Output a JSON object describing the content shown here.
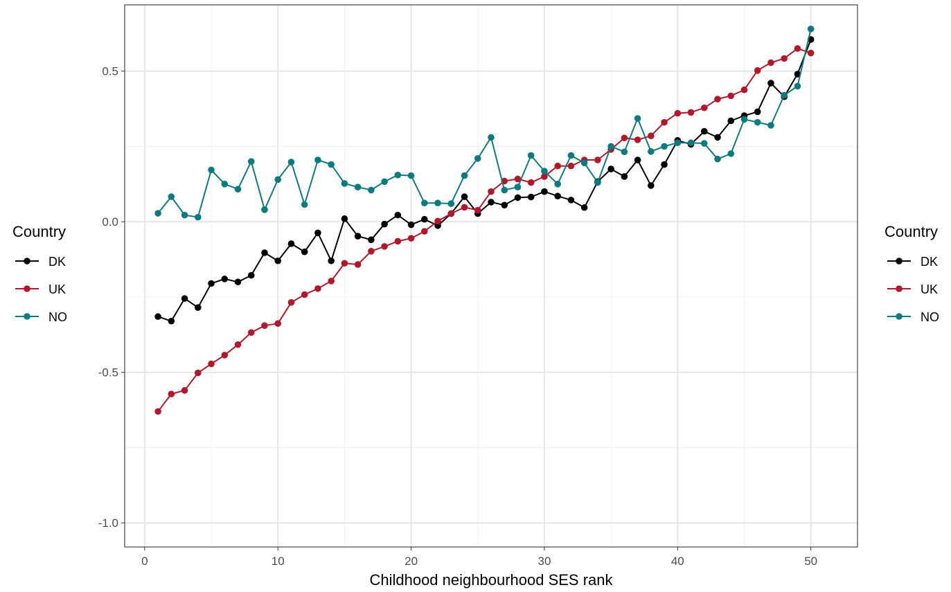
{
  "chart_data": {
    "type": "line",
    "title": "",
    "xlabel": "Childhood neighbourhood SES rank",
    "ylabel": "",
    "xlim": [
      -1.5,
      53.5
    ],
    "ylim": [
      -1.08,
      0.72
    ],
    "x_ticks": [
      0,
      10,
      20,
      30,
      40,
      50
    ],
    "x_tick_labels": [
      "0",
      "10",
      "20",
      "30",
      "40",
      "50"
    ],
    "y_ticks": [
      0.5,
      0.0,
      -0.5,
      -1.0
    ],
    "y_tick_labels": [
      "0.5",
      "0.0",
      "-0.5",
      "-1.0"
    ],
    "grid": true,
    "legend": {
      "title": "Country",
      "placement": "left and right",
      "entries": [
        "DK",
        "UK",
        "NO"
      ]
    },
    "x": [
      1,
      2,
      3,
      4,
      5,
      6,
      7,
      8,
      9,
      10,
      11,
      12,
      13,
      14,
      15,
      16,
      17,
      18,
      19,
      20,
      21,
      22,
      23,
      24,
      25,
      26,
      27,
      28,
      29,
      30,
      31,
      32,
      33,
      34,
      35,
      36,
      37,
      38,
      39,
      40,
      41,
      42,
      43,
      44,
      45,
      46,
      47,
      48,
      49,
      50
    ],
    "series": [
      {
        "name": "DK",
        "color": "#000000",
        "values": [
          -0.315,
          -0.33,
          -0.255,
          -0.285,
          -0.205,
          -0.19,
          -0.2,
          -0.178,
          -0.103,
          -0.13,
          -0.073,
          -0.1,
          -0.037,
          -0.13,
          0.01,
          -0.048,
          -0.06,
          -0.008,
          0.022,
          -0.01,
          0.008,
          -0.013,
          0.027,
          0.083,
          0.027,
          0.065,
          0.055,
          0.08,
          0.082,
          0.1,
          0.085,
          0.072,
          0.047,
          0.133,
          0.175,
          0.15,
          0.205,
          0.12,
          0.19,
          0.27,
          0.257,
          0.3,
          0.28,
          0.335,
          0.352,
          0.365,
          0.46,
          0.415,
          0.49,
          0.605
        ]
      },
      {
        "name": "UK",
        "color": "#b2182b",
        "values": [
          -0.63,
          -0.572,
          -0.56,
          -0.502,
          -0.472,
          -0.443,
          -0.408,
          -0.368,
          -0.345,
          -0.338,
          -0.268,
          -0.242,
          -0.222,
          -0.197,
          -0.138,
          -0.142,
          -0.098,
          -0.082,
          -0.065,
          -0.055,
          -0.032,
          0.002,
          0.027,
          0.048,
          0.038,
          0.1,
          0.135,
          0.142,
          0.13,
          0.15,
          0.185,
          0.185,
          0.205,
          0.205,
          0.24,
          0.278,
          0.272,
          0.285,
          0.33,
          0.36,
          0.363,
          0.378,
          0.407,
          0.418,
          0.438,
          0.502,
          0.528,
          0.542,
          0.575,
          0.56
        ]
      },
      {
        "name": "NO",
        "color": "#0b7b7f",
        "values": [
          0.028,
          0.083,
          0.022,
          0.015,
          0.172,
          0.125,
          0.108,
          0.2,
          0.04,
          0.14,
          0.198,
          0.057,
          0.205,
          0.19,
          0.127,
          0.115,
          0.105,
          0.133,
          0.155,
          0.153,
          0.062,
          0.062,
          0.06,
          0.153,
          0.21,
          0.28,
          0.105,
          0.115,
          0.22,
          0.168,
          0.125,
          0.22,
          0.195,
          0.13,
          0.25,
          0.232,
          0.343,
          0.233,
          0.25,
          0.262,
          0.262,
          0.26,
          0.208,
          0.226,
          0.34,
          0.33,
          0.32,
          0.42,
          0.45,
          0.64
        ]
      }
    ]
  }
}
